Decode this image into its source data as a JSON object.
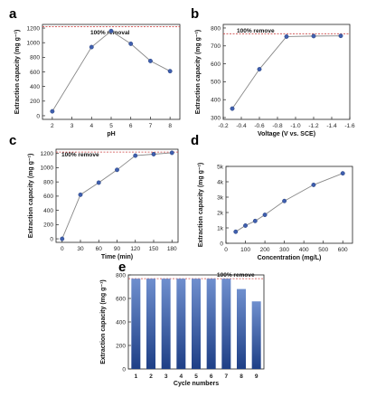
{
  "chart_data": [
    {
      "panel": "a",
      "type": "line",
      "xlabel": "pH",
      "ylabel": "Extraction capacity (mg g⁻¹)",
      "x": [
        2,
        4,
        5,
        6,
        7,
        8
      ],
      "values": [
        60,
        940,
        1160,
        985,
        750,
        610
      ],
      "xlim": [
        1.5,
        8.5
      ],
      "ylim": [
        -50,
        1250
      ],
      "xticks": [
        "2",
        "3",
        "4",
        "5",
        "6",
        "7",
        "8"
      ],
      "yticks": [
        "0",
        "200",
        "400",
        "600",
        "800",
        "1000",
        "1200"
      ],
      "reference": {
        "value": 1220,
        "label": "100% removal"
      }
    },
    {
      "panel": "b",
      "type": "line",
      "xlabel": "Voltage (V vs. SCE)",
      "ylabel": "Extraction capacity (mg g⁻¹)",
      "x": [
        -0.3,
        -0.6,
        -0.9,
        -1.2,
        -1.5
      ],
      "values": [
        350,
        570,
        752,
        755,
        756
      ],
      "xlim": [
        -0.2,
        -1.6
      ],
      "ylim": [
        290,
        820
      ],
      "xticks": [
        "-0.2",
        "-0.4",
        "-0.6",
        "-0.8",
        "-1.0",
        "-1.2",
        "-1.4",
        "-1.6"
      ],
      "yticks": [
        "300",
        "400",
        "500",
        "600",
        "700",
        "800"
      ],
      "reference": {
        "value": 768,
        "label": "100% remove"
      }
    },
    {
      "panel": "c",
      "type": "line",
      "xlabel": "Time (min)",
      "ylabel": "Extraction capacity (mg g⁻¹)",
      "x": [
        0,
        30,
        60,
        90,
        120,
        150,
        180
      ],
      "values": [
        0,
        620,
        790,
        970,
        1170,
        1190,
        1210
      ],
      "xlim": [
        -10,
        190
      ],
      "ylim": [
        -50,
        1260
      ],
      "xticks": [
        "0",
        "30",
        "60",
        "90",
        "120",
        "150",
        "180"
      ],
      "yticks": [
        "0",
        "200",
        "400",
        "600",
        "800",
        "1000",
        "1200"
      ],
      "reference": {
        "value": 1220,
        "label": "100% remove"
      }
    },
    {
      "panel": "d",
      "type": "line",
      "xlabel": "Concentration (mg/L)",
      "ylabel": "Extraction capacity (mg g⁻¹)",
      "x": [
        50,
        100,
        150,
        200,
        300,
        450,
        600
      ],
      "values": [
        750,
        1150,
        1450,
        1850,
        2750,
        3800,
        4550
      ],
      "xlim": [
        0,
        650
      ],
      "ylim": [
        0,
        5000
      ],
      "xticks": [
        "0",
        "100",
        "200",
        "300",
        "400",
        "500",
        "600"
      ],
      "yticks": [
        "0",
        "1k",
        "2k",
        "3k",
        "4k",
        "5k"
      ]
    },
    {
      "panel": "e",
      "type": "bar",
      "xlabel": "Cycle numbers",
      "ylabel": "Extraction capacity (mg g⁻¹)",
      "categories": [
        "1",
        "2",
        "3",
        "4",
        "5",
        "6",
        "7",
        "8",
        "9"
      ],
      "values": [
        768,
        768,
        768,
        768,
        768,
        768,
        768,
        680,
        575
      ],
      "ylim": [
        0,
        800
      ],
      "yticks": [
        "0",
        "200",
        "400",
        "600",
        "800"
      ],
      "reference": {
        "value": 768,
        "label": "100% remove"
      }
    }
  ],
  "colors": {
    "line": "#888888",
    "marker": "#3f5fae",
    "reference": "#cc4444",
    "bar_top": "#6f8fce",
    "bar_bottom": "#1e3f86",
    "axis": "#222222"
  }
}
